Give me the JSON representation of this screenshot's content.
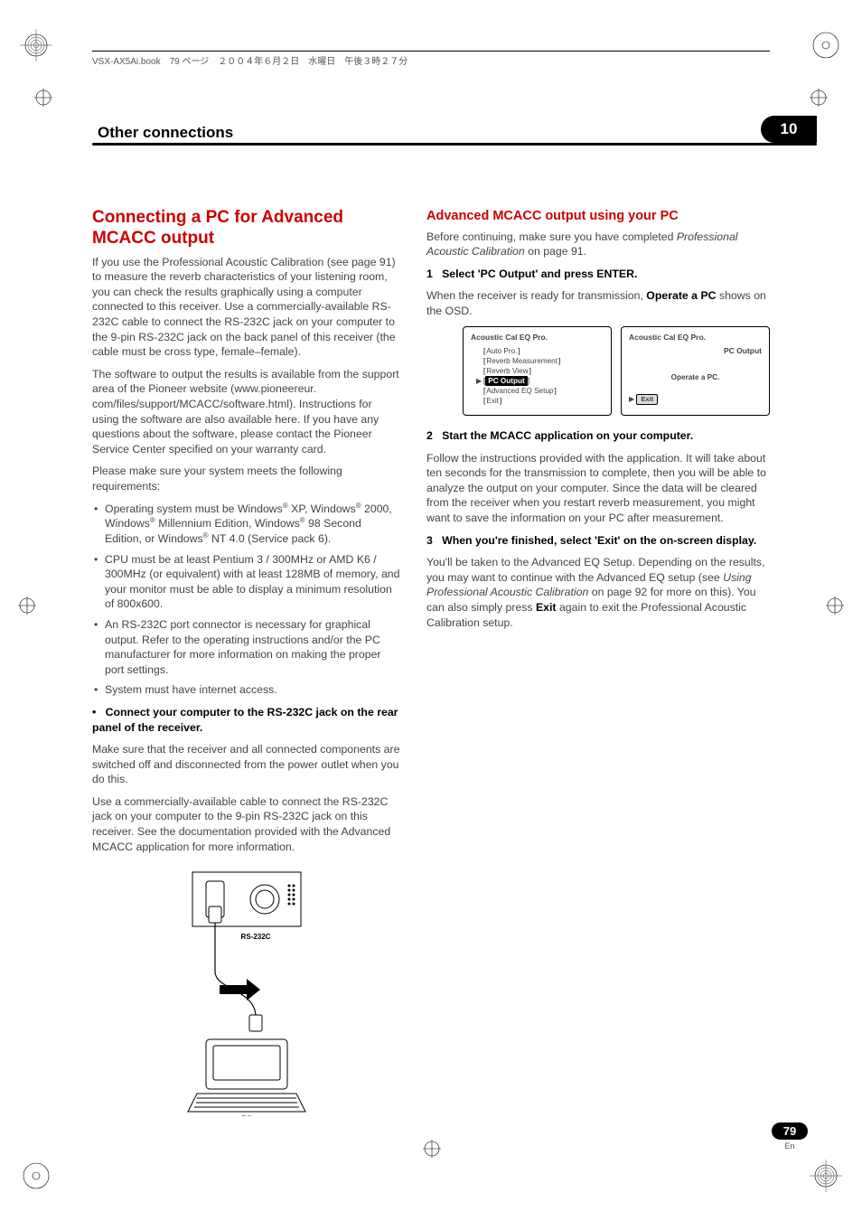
{
  "topline": "VSX-AX5Ai.book　79 ページ　２００４年６月２日　水曜日　午後３時２７分",
  "header": {
    "title": "Other connections",
    "chapter": "10"
  },
  "left": {
    "h2": "Connecting a PC for Advanced MCACC output",
    "p1": "If you use the Professional Acoustic Calibration (see page 91) to measure the reverb characteristics of your listening room, you can check the results graphically using a computer connected to this receiver. Use a commercially-available RS-232C cable to connect the RS-232C jack on your computer to the 9-pin RS-232C jack on the back panel of this receiver (the cable must be cross type, female–female).",
    "p2": "The software to output the results is available from the support area of the Pioneer website (www.pioneereur. com/files/support/MCACC/software.html). Instructions for using the software are also available here. If you have any questions about the software, please contact the Pioneer Service Center specified on your warranty card.",
    "p3": "Please make sure your system meets the following requirements:",
    "bullets": {
      "b1a": "Operating system must be Windows",
      "b1b": " XP, Windows",
      "b1c": " 2000, Windows",
      "b1d": " Millennium Edition, Windows",
      "b1e": " 98 Second Edition, or Windows",
      "b1f": " NT 4.0 (Service pack 6).",
      "b2": "CPU must be at least Pentium 3 / 300MHz or AMD K6 / 300MHz (or equivalent) with at least 128MB of memory, and your monitor must be able to display a minimum resolution of 800x600.",
      "b3": "An RS-232C port connector is necessary for graphical output. Refer to the operating instructions and/or the PC manufacturer for more information on making the proper port settings.",
      "b4": "System must have internet access."
    },
    "step_bullet": "•",
    "step_text": "Connect your computer to the RS-232C jack on the rear panel of the receiver.",
    "p4": "Make sure that the receiver and all connected components are switched off and disconnected from the power outlet when you do this.",
    "p5": "Use a commercially-available cable to connect the RS-232C jack on your computer to the 9-pin RS-232C jack on this receiver. See the documentation provided with the Advanced MCACC application for more information.",
    "diagram": {
      "rs_label": "RS-232C",
      "pc_label": "PC"
    }
  },
  "right": {
    "h3": "Advanced MCACC output using your PC",
    "intro_a": "Before continuing, make sure you have completed ",
    "intro_i": "Professional Acoustic Calibration",
    "intro_b": " on page 91.",
    "s1_label": "1",
    "s1_text": "Select 'PC Output' and press ENTER.",
    "s1_body_a": "When the receiver is ready for transmission, ",
    "s1_body_b": "Operate a PC",
    "s1_body_c": " shows on the OSD.",
    "osd1": {
      "title": "Acoustic  Cal  EQ  Pro.",
      "items": [
        "Auto Pro.",
        "Reverb Measurement",
        "Reverb View",
        "PC Output",
        "Advanced EQ Setup",
        "Exit"
      ],
      "selected_index": 3
    },
    "osd2": {
      "title": "Acoustic  Cal  EQ  Pro.",
      "sub": "PC Output",
      "msg": "Operate  a  PC.",
      "exit": "Exit",
      "tri": "▶"
    },
    "s2_label": "2",
    "s2_text": "Start the MCACC application on your computer.",
    "s2_body": "Follow the instructions provided with the application. It will take about ten seconds for the transmission to complete, then you will be able to analyze the output on your computer. Since the data will be cleared from the receiver when you restart reverb measurement, you might want to save the information on your PC after measurement.",
    "s3_label": "3",
    "s3_text": "When you're finished, select 'Exit' on the on-screen display.",
    "s3_body_a": "You'll be taken to the Advanced EQ Setup. Depending on the results, you may want to continue with the Advanced EQ setup (see ",
    "s3_body_i": "Using Professional Acoustic Calibration",
    "s3_body_b": " on page 92 for more on this). You can also simply press ",
    "s3_body_bold": "Exit",
    "s3_body_c": " again to exit the Professional Acoustic Calibration setup."
  },
  "footer": {
    "page": "79",
    "lang": "En"
  }
}
